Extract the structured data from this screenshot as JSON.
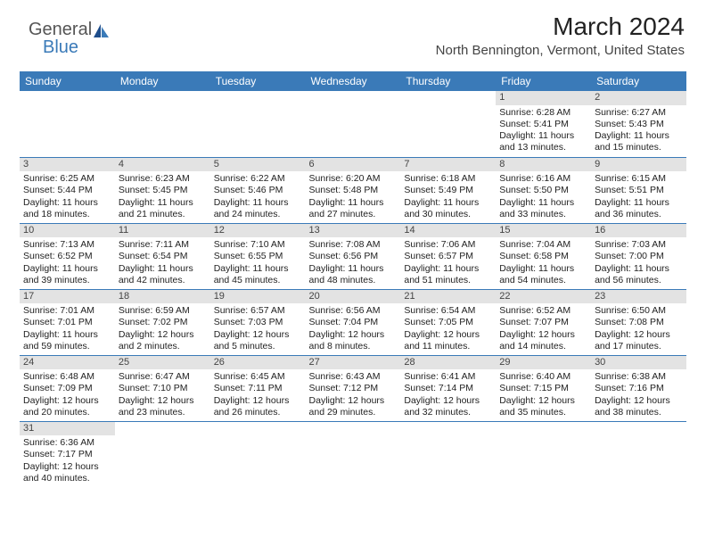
{
  "logo": {
    "text1": "General",
    "text2": "Blue"
  },
  "title": "March 2024",
  "location": "North Bennington, Vermont, United States",
  "colors": {
    "header_bg": "#3a7ab8",
    "daynum_bg": "#e3e3e3",
    "border": "#3a7ab8"
  },
  "weekdays": [
    "Sunday",
    "Monday",
    "Tuesday",
    "Wednesday",
    "Thursday",
    "Friday",
    "Saturday"
  ],
  "weeks": [
    [
      null,
      null,
      null,
      null,
      null,
      {
        "n": "1",
        "sr": "Sunrise: 6:28 AM",
        "ss": "Sunset: 5:41 PM",
        "d1": "Daylight: 11 hours",
        "d2": "and 13 minutes."
      },
      {
        "n": "2",
        "sr": "Sunrise: 6:27 AM",
        "ss": "Sunset: 5:43 PM",
        "d1": "Daylight: 11 hours",
        "d2": "and 15 minutes."
      }
    ],
    [
      {
        "n": "3",
        "sr": "Sunrise: 6:25 AM",
        "ss": "Sunset: 5:44 PM",
        "d1": "Daylight: 11 hours",
        "d2": "and 18 minutes."
      },
      {
        "n": "4",
        "sr": "Sunrise: 6:23 AM",
        "ss": "Sunset: 5:45 PM",
        "d1": "Daylight: 11 hours",
        "d2": "and 21 minutes."
      },
      {
        "n": "5",
        "sr": "Sunrise: 6:22 AM",
        "ss": "Sunset: 5:46 PM",
        "d1": "Daylight: 11 hours",
        "d2": "and 24 minutes."
      },
      {
        "n": "6",
        "sr": "Sunrise: 6:20 AM",
        "ss": "Sunset: 5:48 PM",
        "d1": "Daylight: 11 hours",
        "d2": "and 27 minutes."
      },
      {
        "n": "7",
        "sr": "Sunrise: 6:18 AM",
        "ss": "Sunset: 5:49 PM",
        "d1": "Daylight: 11 hours",
        "d2": "and 30 minutes."
      },
      {
        "n": "8",
        "sr": "Sunrise: 6:16 AM",
        "ss": "Sunset: 5:50 PM",
        "d1": "Daylight: 11 hours",
        "d2": "and 33 minutes."
      },
      {
        "n": "9",
        "sr": "Sunrise: 6:15 AM",
        "ss": "Sunset: 5:51 PM",
        "d1": "Daylight: 11 hours",
        "d2": "and 36 minutes."
      }
    ],
    [
      {
        "n": "10",
        "sr": "Sunrise: 7:13 AM",
        "ss": "Sunset: 6:52 PM",
        "d1": "Daylight: 11 hours",
        "d2": "and 39 minutes."
      },
      {
        "n": "11",
        "sr": "Sunrise: 7:11 AM",
        "ss": "Sunset: 6:54 PM",
        "d1": "Daylight: 11 hours",
        "d2": "and 42 minutes."
      },
      {
        "n": "12",
        "sr": "Sunrise: 7:10 AM",
        "ss": "Sunset: 6:55 PM",
        "d1": "Daylight: 11 hours",
        "d2": "and 45 minutes."
      },
      {
        "n": "13",
        "sr": "Sunrise: 7:08 AM",
        "ss": "Sunset: 6:56 PM",
        "d1": "Daylight: 11 hours",
        "d2": "and 48 minutes."
      },
      {
        "n": "14",
        "sr": "Sunrise: 7:06 AM",
        "ss": "Sunset: 6:57 PM",
        "d1": "Daylight: 11 hours",
        "d2": "and 51 minutes."
      },
      {
        "n": "15",
        "sr": "Sunrise: 7:04 AM",
        "ss": "Sunset: 6:58 PM",
        "d1": "Daylight: 11 hours",
        "d2": "and 54 minutes."
      },
      {
        "n": "16",
        "sr": "Sunrise: 7:03 AM",
        "ss": "Sunset: 7:00 PM",
        "d1": "Daylight: 11 hours",
        "d2": "and 56 minutes."
      }
    ],
    [
      {
        "n": "17",
        "sr": "Sunrise: 7:01 AM",
        "ss": "Sunset: 7:01 PM",
        "d1": "Daylight: 11 hours",
        "d2": "and 59 minutes."
      },
      {
        "n": "18",
        "sr": "Sunrise: 6:59 AM",
        "ss": "Sunset: 7:02 PM",
        "d1": "Daylight: 12 hours",
        "d2": "and 2 minutes."
      },
      {
        "n": "19",
        "sr": "Sunrise: 6:57 AM",
        "ss": "Sunset: 7:03 PM",
        "d1": "Daylight: 12 hours",
        "d2": "and 5 minutes."
      },
      {
        "n": "20",
        "sr": "Sunrise: 6:56 AM",
        "ss": "Sunset: 7:04 PM",
        "d1": "Daylight: 12 hours",
        "d2": "and 8 minutes."
      },
      {
        "n": "21",
        "sr": "Sunrise: 6:54 AM",
        "ss": "Sunset: 7:05 PM",
        "d1": "Daylight: 12 hours",
        "d2": "and 11 minutes."
      },
      {
        "n": "22",
        "sr": "Sunrise: 6:52 AM",
        "ss": "Sunset: 7:07 PM",
        "d1": "Daylight: 12 hours",
        "d2": "and 14 minutes."
      },
      {
        "n": "23",
        "sr": "Sunrise: 6:50 AM",
        "ss": "Sunset: 7:08 PM",
        "d1": "Daylight: 12 hours",
        "d2": "and 17 minutes."
      }
    ],
    [
      {
        "n": "24",
        "sr": "Sunrise: 6:48 AM",
        "ss": "Sunset: 7:09 PM",
        "d1": "Daylight: 12 hours",
        "d2": "and 20 minutes."
      },
      {
        "n": "25",
        "sr": "Sunrise: 6:47 AM",
        "ss": "Sunset: 7:10 PM",
        "d1": "Daylight: 12 hours",
        "d2": "and 23 minutes."
      },
      {
        "n": "26",
        "sr": "Sunrise: 6:45 AM",
        "ss": "Sunset: 7:11 PM",
        "d1": "Daylight: 12 hours",
        "d2": "and 26 minutes."
      },
      {
        "n": "27",
        "sr": "Sunrise: 6:43 AM",
        "ss": "Sunset: 7:12 PM",
        "d1": "Daylight: 12 hours",
        "d2": "and 29 minutes."
      },
      {
        "n": "28",
        "sr": "Sunrise: 6:41 AM",
        "ss": "Sunset: 7:14 PM",
        "d1": "Daylight: 12 hours",
        "d2": "and 32 minutes."
      },
      {
        "n": "29",
        "sr": "Sunrise: 6:40 AM",
        "ss": "Sunset: 7:15 PM",
        "d1": "Daylight: 12 hours",
        "d2": "and 35 minutes."
      },
      {
        "n": "30",
        "sr": "Sunrise: 6:38 AM",
        "ss": "Sunset: 7:16 PM",
        "d1": "Daylight: 12 hours",
        "d2": "and 38 minutes."
      }
    ],
    [
      {
        "n": "31",
        "sr": "Sunrise: 6:36 AM",
        "ss": "Sunset: 7:17 PM",
        "d1": "Daylight: 12 hours",
        "d2": "and 40 minutes."
      },
      null,
      null,
      null,
      null,
      null,
      null
    ]
  ]
}
